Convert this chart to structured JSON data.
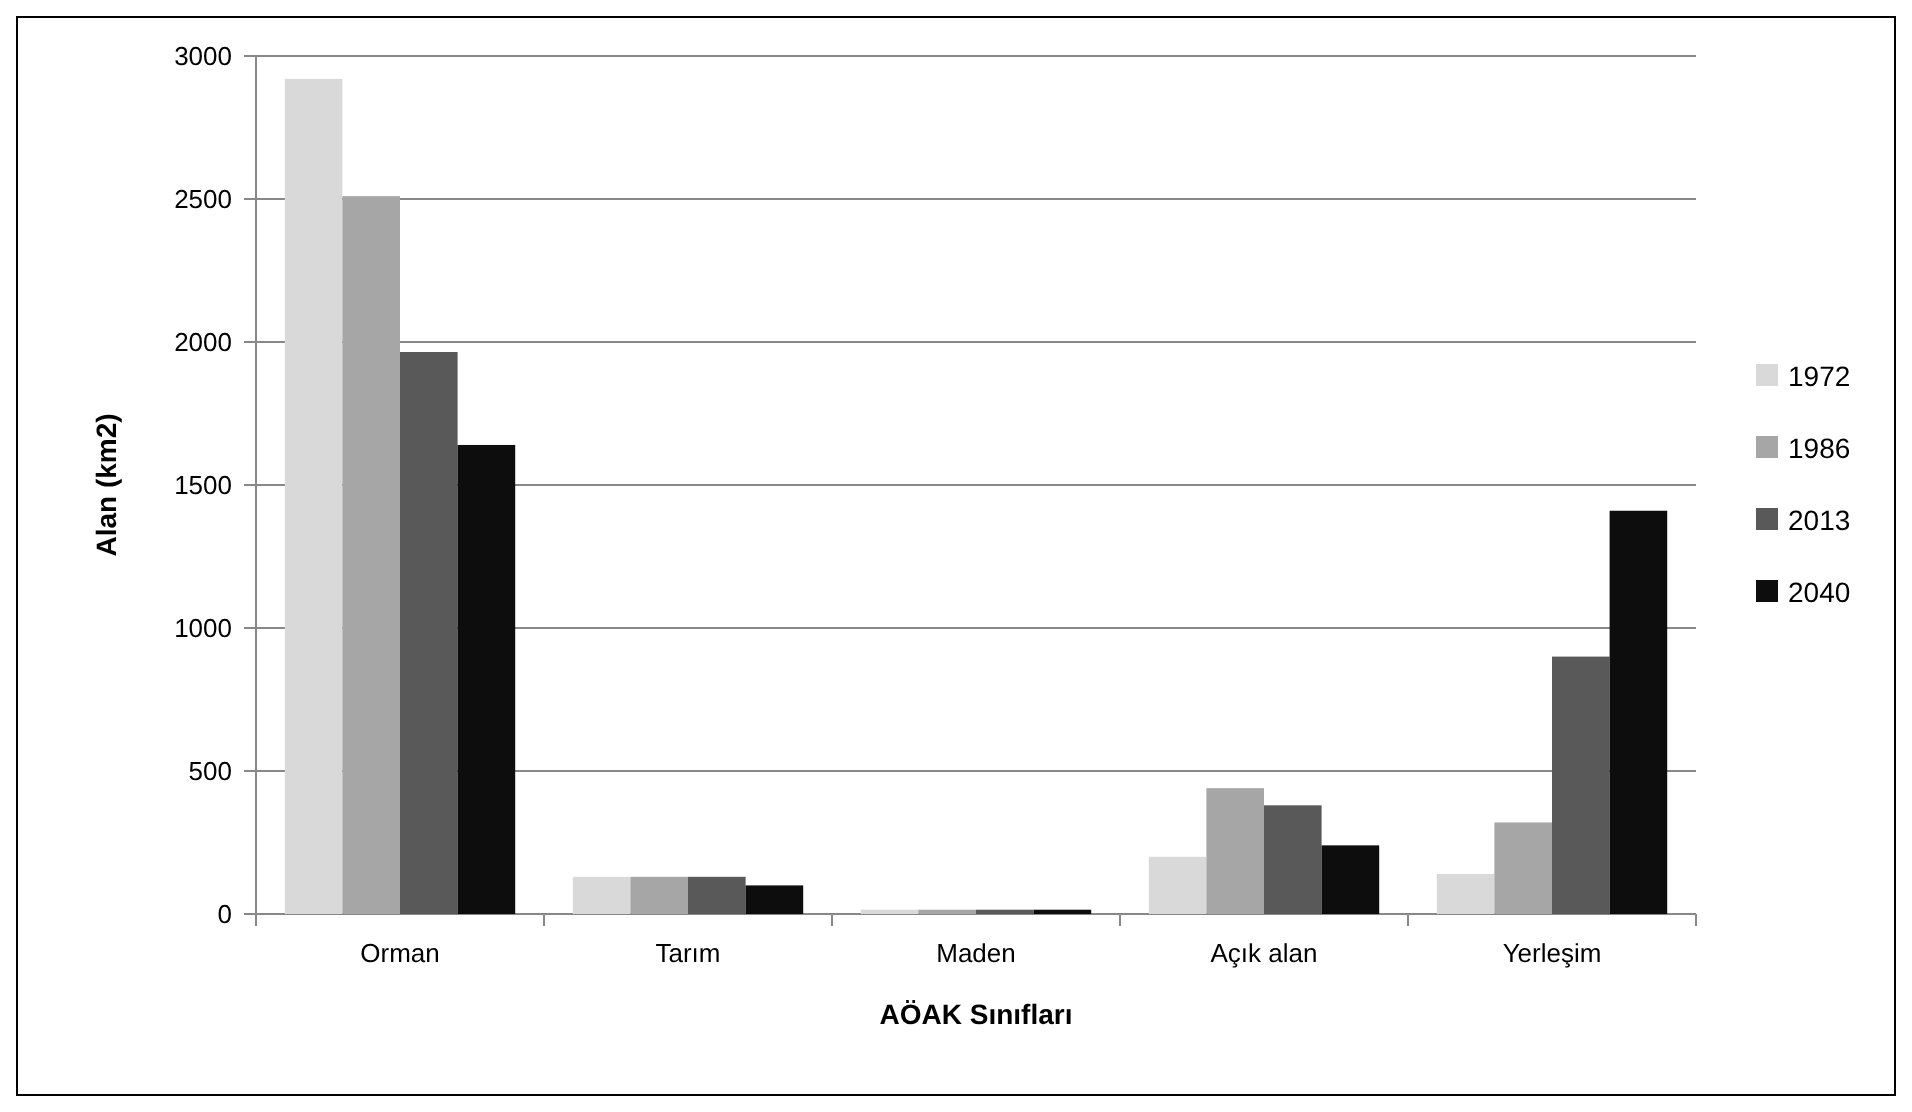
{
  "chart_data": {
    "type": "bar",
    "xlabel": "AÖAK Sınıfları",
    "ylabel": "Alan (km2)",
    "categories": [
      "Orman",
      "Tarım",
      "Maden",
      "Açık alan",
      "Yerleşim"
    ],
    "series": [
      {
        "name": "1972",
        "color": "#d9d9d9",
        "values": [
          2920,
          130,
          15,
          200,
          140
        ]
      },
      {
        "name": "1986",
        "color": "#a6a6a6",
        "values": [
          2510,
          130,
          15,
          440,
          320
        ]
      },
      {
        "name": "2013",
        "color": "#595959",
        "values": [
          1965,
          130,
          15,
          380,
          900
        ]
      },
      {
        "name": "2040",
        "color": "#0d0d0d",
        "values": [
          1640,
          100,
          15,
          240,
          1410
        ]
      }
    ],
    "ylim": [
      0,
      3000
    ],
    "yticks": [
      0,
      500,
      1000,
      1500,
      2000,
      2500,
      3000
    ],
    "grid": "y",
    "legend": "right"
  }
}
